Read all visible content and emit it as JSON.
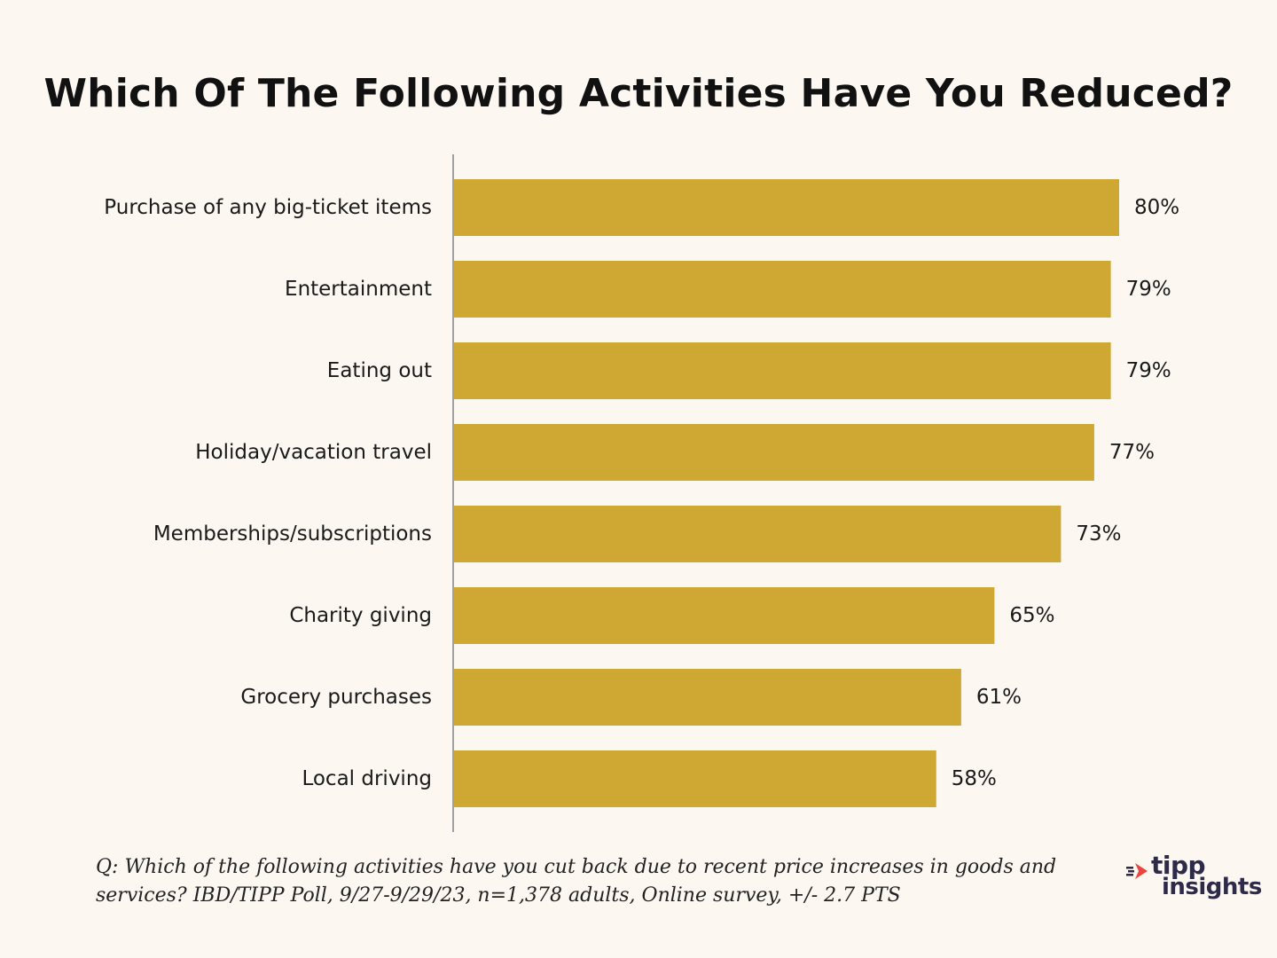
{
  "chart_data": {
    "type": "bar",
    "orientation": "horizontal",
    "title": "Which Of The Following Activities Have You Reduced?",
    "categories": [
      "Purchase of any big-ticket items",
      "Entertainment",
      "Eating out",
      "Holiday/vacation travel",
      "Memberships/subscriptions",
      "Charity giving",
      "Grocery purchases",
      "Local driving"
    ],
    "values": [
      80,
      79,
      79,
      77,
      73,
      65,
      61,
      58
    ],
    "value_labels": [
      "80%",
      "79%",
      "79%",
      "77%",
      "73%",
      "65%",
      "61%",
      "58%"
    ],
    "xlim": [
      0,
      100
    ],
    "grid": false,
    "legend": "none",
    "bar_color": "#cfa733"
  },
  "footnote": "Q:  Which of the following activities have you cut back due to recent price increases in goods and services? IBD/TIPP Poll, 9/27-9/29/23, n=1,378 adults, Online survey, +/- 2.7 PTS",
  "logo": {
    "word1": "tipp",
    "word2": "insights",
    "mark_icon": "speed-arrow-icon",
    "colors": {
      "mark": "#e8473f",
      "text": "#2d2a4a"
    }
  },
  "colors": {
    "background": "#fdf7f2",
    "axis": "#a0a0a0"
  }
}
